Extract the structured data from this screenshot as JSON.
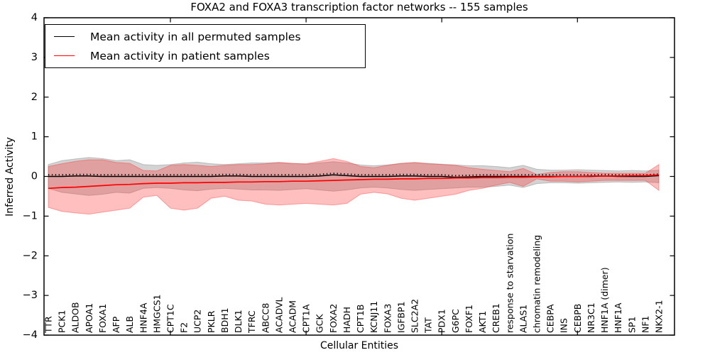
{
  "chart_data": {
    "type": "line",
    "title": "FOXA2 and FOXA3 transcription factor networks -- 155 samples",
    "xlabel": "Cellular Entities",
    "ylabel": "Inferred Activity",
    "ylim": [
      -4,
      4
    ],
    "yticks": [
      -4,
      -3,
      -2,
      -1,
      0,
      1,
      2,
      3,
      4
    ],
    "grid": false,
    "legend_position": "upper left",
    "categories": [
      "TTR",
      "PCK1",
      "ALDOB",
      "APOA1",
      "FOXA1",
      "AFP",
      "ALB",
      "HNF4A",
      "HMGCS1",
      "CPT1C",
      "F2",
      "UCP2",
      "PKLR",
      "BDH1",
      "DLK1",
      "TFRC",
      "ABCC8",
      "ACADVL",
      "ACADM",
      "CPT1A",
      "GCK",
      "FOXA2",
      "HADH",
      "CPT1B",
      "KCNJ11",
      "FOXA3",
      "IGFBP1",
      "SLC2A2",
      "TAT",
      "PDX1",
      "G6PC",
      "FOXF1",
      "AKT1",
      "CREB1",
      "response to starvation",
      "ALAS1",
      "chromatin remodeling",
      "CEBPA",
      "INS",
      "CEBPB",
      "NR3C1",
      "HNF1A (dimer)",
      "HNF1A",
      "SP1",
      "NF1",
      "NKX2-1"
    ],
    "series": [
      {
        "name": "Mean activity in all permuted samples",
        "color": "#000000",
        "values": [
          0,
          0,
          0.01,
          0.01,
          0,
          0,
          0,
          0,
          0,
          0,
          0,
          0,
          0,
          0.01,
          0.01,
          0,
          0,
          0,
          0,
          0,
          0.01,
          0.04,
          0.02,
          0,
          0,
          0,
          0.01,
          0.01,
          0,
          0,
          -0.02,
          -0.01,
          0,
          0,
          0,
          0,
          0,
          0,
          0,
          0,
          0,
          0.01,
          0,
          0,
          0,
          0.02
        ]
      },
      {
        "name": "Mean activity in patient samples",
        "color": "#ff0000",
        "values": [
          -0.3,
          -0.28,
          -0.27,
          -0.25,
          -0.23,
          -0.21,
          -0.2,
          -0.18,
          -0.17,
          -0.17,
          -0.16,
          -0.16,
          -0.15,
          -0.15,
          -0.14,
          -0.14,
          -0.13,
          -0.13,
          -0.12,
          -0.12,
          -0.11,
          -0.1,
          -0.09,
          -0.08,
          -0.07,
          -0.07,
          -0.06,
          -0.06,
          -0.05,
          -0.05,
          -0.04,
          -0.04,
          -0.03,
          -0.03,
          -0.02,
          -0.02,
          -0.01,
          -0.01,
          0,
          0,
          0.01,
          0.01,
          0.01,
          0.02,
          0.02,
          0.04
        ]
      }
    ],
    "bands": [
      {
        "name": "permuted-samples-band",
        "color": "#9e9e9e",
        "opacity": 0.45,
        "upper": [
          0.3,
          0.4,
          0.44,
          0.48,
          0.45,
          0.4,
          0.42,
          0.3,
          0.28,
          0.3,
          0.34,
          0.36,
          0.32,
          0.3,
          0.32,
          0.34,
          0.34,
          0.35,
          0.33,
          0.31,
          0.34,
          0.37,
          0.34,
          0.29,
          0.27,
          0.29,
          0.33,
          0.35,
          0.33,
          0.31,
          0.29,
          0.27,
          0.27,
          0.25,
          0.22,
          0.28,
          0.18,
          0.16,
          0.16,
          0.17,
          0.16,
          0.15,
          0.14,
          0.15,
          0.14,
          0.16
        ],
        "lower": [
          -0.3,
          -0.4,
          -0.44,
          -0.48,
          -0.45,
          -0.4,
          -0.42,
          -0.3,
          -0.28,
          -0.3,
          -0.34,
          -0.36,
          -0.32,
          -0.3,
          -0.32,
          -0.34,
          -0.34,
          -0.35,
          -0.33,
          -0.31,
          -0.34,
          -0.37,
          -0.34,
          -0.29,
          -0.27,
          -0.29,
          -0.33,
          -0.35,
          -0.33,
          -0.31,
          -0.29,
          -0.27,
          -0.27,
          -0.25,
          -0.22,
          -0.28,
          -0.18,
          -0.16,
          -0.16,
          -0.17,
          -0.16,
          -0.15,
          -0.14,
          -0.15,
          -0.14,
          -0.16
        ]
      },
      {
        "name": "patient-samples-band",
        "color": "#ff2a2a",
        "opacity": 0.3,
        "upper": [
          0.25,
          0.32,
          0.38,
          0.42,
          0.42,
          0.35,
          0.33,
          0.15,
          0.14,
          0.28,
          0.3,
          0.28,
          0.25,
          0.28,
          0.3,
          0.3,
          0.32,
          0.35,
          0.33,
          0.32,
          0.38,
          0.45,
          0.38,
          0.25,
          0.22,
          0.28,
          0.33,
          0.35,
          0.32,
          0.3,
          0.28,
          0.22,
          0.18,
          0.15,
          0.12,
          0.2,
          0.05,
          0.1,
          0.12,
          0.12,
          0.1,
          0.08,
          0.08,
          0.08,
          0.08,
          0.3
        ],
        "lower": [
          -0.78,
          -0.88,
          -0.92,
          -0.95,
          -0.9,
          -0.85,
          -0.8,
          -0.52,
          -0.48,
          -0.8,
          -0.85,
          -0.8,
          -0.55,
          -0.5,
          -0.6,
          -0.62,
          -0.7,
          -0.72,
          -0.7,
          -0.68,
          -0.7,
          -0.72,
          -0.68,
          -0.45,
          -0.4,
          -0.44,
          -0.55,
          -0.6,
          -0.55,
          -0.5,
          -0.45,
          -0.35,
          -0.3,
          -0.22,
          -0.15,
          -0.25,
          -0.06,
          -0.12,
          -0.12,
          -0.14,
          -0.12,
          -0.1,
          -0.1,
          -0.1,
          -0.1,
          -0.35
        ]
      }
    ],
    "x_major_tick_indices": [
      9,
      19,
      29,
      39
    ]
  }
}
